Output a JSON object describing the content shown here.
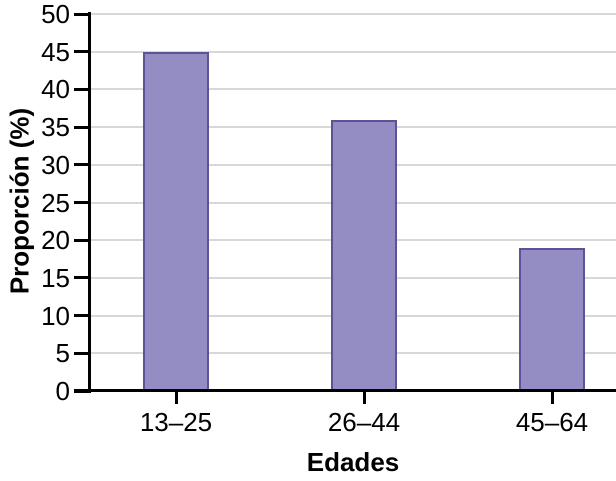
{
  "chart_data": {
    "type": "bar",
    "title": "",
    "categories": [
      "13–25",
      "26–44",
      "45–64"
    ],
    "values": [
      45,
      36,
      19
    ],
    "xlabel": "Edades",
    "ylabel": "Proporción (%)",
    "ylim": [
      0,
      50
    ],
    "yticks": [
      0,
      5,
      10,
      15,
      20,
      25,
      30,
      35,
      40,
      45,
      50
    ],
    "grid": "horizontal gridlines at every y tick, full plot width",
    "legend": "none",
    "colors": {
      "bar_fill": "#938DC3",
      "bar_border": "#5C5396",
      "gridline": "#D8D8D8",
      "axis": "#000000",
      "text": "#000000",
      "background": "#FFFFFF"
    }
  }
}
